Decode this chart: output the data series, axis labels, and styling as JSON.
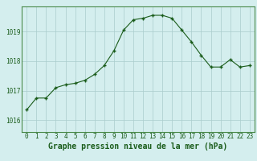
{
  "x": [
    0,
    1,
    2,
    3,
    4,
    5,
    6,
    7,
    8,
    9,
    10,
    11,
    12,
    13,
    14,
    15,
    16,
    17,
    18,
    19,
    20,
    21,
    22,
    23
  ],
  "y": [
    1016.35,
    1016.75,
    1016.75,
    1017.1,
    1017.2,
    1017.25,
    1017.35,
    1017.55,
    1017.85,
    1018.35,
    1019.05,
    1019.4,
    1019.45,
    1019.55,
    1019.55,
    1019.45,
    1019.05,
    1018.65,
    1018.2,
    1017.8,
    1017.8,
    1018.05,
    1017.8,
    1017.85
  ],
  "line_color": "#1a5c1a",
  "marker_color": "#1a5c1a",
  "bg_color": "#d4eeee",
  "grid_color": "#aacccc",
  "title": "Graphe pression niveau de la mer (hPa)",
  "xlabel_ticks": [
    "0",
    "1",
    "2",
    "3",
    "4",
    "5",
    "6",
    "7",
    "8",
    "9",
    "10",
    "11",
    "12",
    "13",
    "14",
    "15",
    "16",
    "17",
    "18",
    "19",
    "20",
    "21",
    "22",
    "23"
  ],
  "yticks": [
    1016,
    1017,
    1018,
    1019
  ],
  "ylim": [
    1015.6,
    1019.85
  ],
  "xlim": [
    -0.5,
    23.5
  ],
  "tick_color": "#1a5c1a",
  "tick_fontsize": 5.5,
  "title_fontsize": 7.0,
  "axis_color": "#4a8a4a"
}
